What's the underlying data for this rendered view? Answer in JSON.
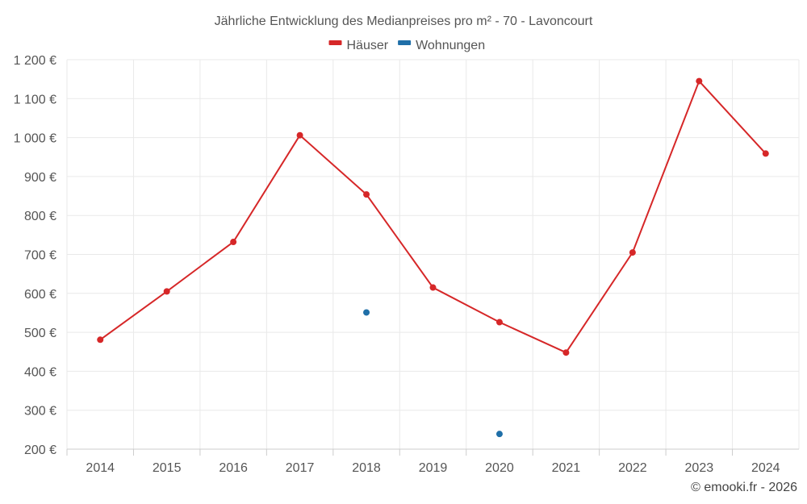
{
  "chart_data": {
    "type": "line",
    "title": "Jährliche Entwicklung des Medianpreises pro m² - 70 - Lavoncourt",
    "categories": [
      "2014",
      "2015",
      "2016",
      "2017",
      "2018",
      "2019",
      "2020",
      "2021",
      "2022",
      "2023",
      "2024"
    ],
    "series": [
      {
        "name": "Häuser",
        "color": "#d62728",
        "values": [
          481,
          605,
          732,
          1006,
          854,
          615,
          526,
          448,
          705,
          1145,
          959
        ]
      },
      {
        "name": "Wohnungen",
        "color": "#1f6fa8",
        "values": [
          null,
          null,
          null,
          null,
          551,
          null,
          239,
          null,
          null,
          null,
          null
        ]
      }
    ],
    "ylim": [
      200,
      1200
    ],
    "yticks": [
      200,
      300,
      400,
      500,
      600,
      700,
      800,
      900,
      1000,
      1100,
      1200
    ],
    "ytick_labels": [
      "200 €",
      "300 €",
      "400 €",
      "500 €",
      "600 €",
      "700 €",
      "800 €",
      "900 €",
      "1 000 €",
      "1 100 €",
      "1 200 €"
    ],
    "xlabel": "",
    "ylabel": "",
    "legend_position": "top-center",
    "grid": true
  },
  "credit": "© emooki.fr - 2026"
}
